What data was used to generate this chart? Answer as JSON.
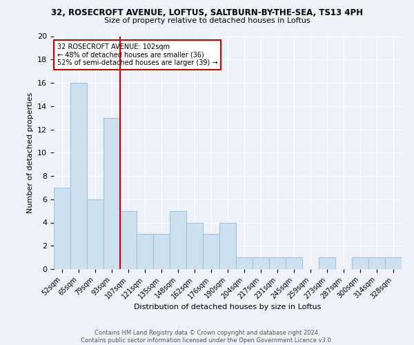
{
  "title1": "32, ROSECROFT AVENUE, LOFTUS, SALTBURN-BY-THE-SEA, TS13 4PH",
  "title2": "Size of property relative to detached houses in Loftus",
  "xlabel": "Distribution of detached houses by size in Loftus",
  "ylabel": "Number of detached properties",
  "categories": [
    "52sqm",
    "65sqm",
    "79sqm",
    "93sqm",
    "107sqm",
    "121sqm",
    "135sqm",
    "148sqm",
    "162sqm",
    "176sqm",
    "190sqm",
    "204sqm",
    "217sqm",
    "231sqm",
    "245sqm",
    "259sqm",
    "273sqm",
    "287sqm",
    "300sqm",
    "314sqm",
    "328sqm"
  ],
  "values": [
    7,
    16,
    6,
    13,
    5,
    3,
    3,
    5,
    4,
    3,
    4,
    1,
    1,
    1,
    1,
    0,
    1,
    0,
    1,
    1,
    1
  ],
  "bar_color": "#cce0f0",
  "bar_edge_color": "#a0c0e0",
  "vline_color": "#cc0000",
  "annotation_text": "32 ROSECROFT AVENUE: 102sqm\n← 48% of detached houses are smaller (36)\n52% of semi-detached houses are larger (39) →",
  "annotation_box_color": "#ffffff",
  "annotation_box_edge": "#cc0000",
  "ylim": [
    0,
    20
  ],
  "yticks": [
    0,
    2,
    4,
    6,
    8,
    10,
    12,
    14,
    16,
    18,
    20
  ],
  "footer": "Contains HM Land Registry data © Crown copyright and database right 2024.\nContains public sector information licensed under the Open Government Licence v3.0.",
  "bg_color": "#eef2f8",
  "grid_color": "#ffffff"
}
